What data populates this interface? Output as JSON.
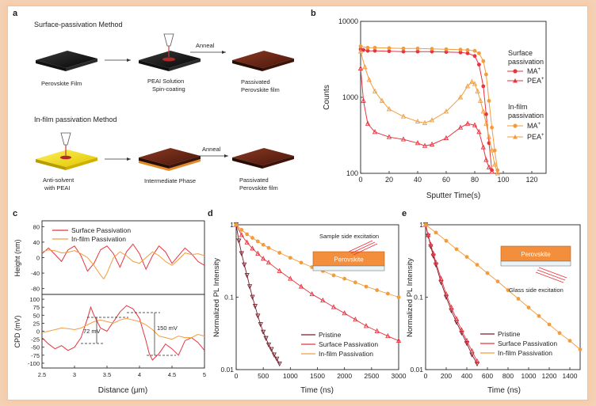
{
  "panels": {
    "a": {
      "letter": "a",
      "method1_title": "Surface-passivation Method",
      "method2_title": "In-film passivation Method",
      "anneal_label": "Anneal",
      "row1_labels": [
        "Perovskite Film",
        "PEAI Solution",
        "Spin-coating",
        "Passivated",
        "Perovskite film"
      ],
      "row2_labels": [
        "Anti-solvent",
        "with PEAI",
        "Intermediate Phase",
        "Passivated",
        "Perovskite film"
      ]
    },
    "b": {
      "letter": "b",
      "legend_group1": [
        "Surface",
        "passivation"
      ],
      "legend_group2": [
        "In-film",
        "passivation"
      ],
      "legend_ma": "MA",
      "legend_pea": "PEA",
      "legend_sup": "+"
    },
    "c": {
      "letter": "c",
      "legend1": "Surface Passivation",
      "legend2": "In-film Passivation",
      "ann_72": "72 mV",
      "ann_150": "150 mV"
    },
    "d": {
      "letter": "d",
      "inset_box": "Perovskite",
      "inset_label": "Sample side excitation"
    },
    "e": {
      "letter": "e",
      "inset_box": "Perovskite",
      "inset_label": "Glass side excitation"
    }
  },
  "colors": {
    "surface": "#e8343f",
    "infilm": "#f39c3c",
    "pristine": "#7a1f2b",
    "orange_box": "#f28e3c"
  },
  "chart_data": [
    {
      "panel": "b",
      "type": "line",
      "xlabel": "Sputter Time(s)",
      "ylabel": "Counts",
      "xlim": [
        0,
        130
      ],
      "ylim": [
        100,
        10000
      ],
      "yscale": "log",
      "xticks": [
        0,
        20,
        40,
        60,
        80,
        100,
        120
      ],
      "yticks": [
        100,
        1000,
        10000
      ],
      "series": [
        {
          "name": "Surface MA+",
          "color": "#e8343f",
          "marker": "circle",
          "x": [
            0,
            2,
            5,
            10,
            20,
            30,
            40,
            50,
            60,
            70,
            75,
            80,
            83,
            86,
            88,
            90,
            92
          ],
          "y": [
            4300,
            4200,
            4100,
            4100,
            4050,
            4000,
            4000,
            4000,
            3950,
            3900,
            3800,
            3500,
            2700,
            1400,
            600,
            250,
            110
          ]
        },
        {
          "name": "Surface PEA+",
          "color": "#e8343f",
          "marker": "triangle",
          "x": [
            0,
            2,
            5,
            10,
            20,
            30,
            40,
            45,
            50,
            60,
            70,
            75,
            80,
            83,
            86,
            88,
            90,
            92
          ],
          "y": [
            2400,
            900,
            450,
            350,
            300,
            280,
            250,
            230,
            240,
            290,
            400,
            450,
            430,
            350,
            220,
            150,
            120,
            105
          ]
        },
        {
          "name": "In-film MA+",
          "color": "#f39c3c",
          "marker": "circle",
          "x": [
            0,
            5,
            10,
            20,
            30,
            40,
            50,
            60,
            70,
            75,
            80,
            83,
            86,
            88,
            90,
            92,
            94,
            96
          ],
          "y": [
            4700,
            4500,
            4500,
            4450,
            4400,
            4400,
            4350,
            4300,
            4250,
            4200,
            4100,
            3800,
            3000,
            2000,
            900,
            400,
            200,
            110
          ]
        },
        {
          "name": "In-film PEA+",
          "color": "#f39c3c",
          "marker": "triangle",
          "x": [
            0,
            3,
            6,
            10,
            15,
            20,
            30,
            40,
            45,
            50,
            60,
            70,
            75,
            78,
            80,
            82,
            84,
            86,
            88,
            90,
            92,
            94,
            96
          ],
          "y": [
            4000,
            2500,
            1700,
            1200,
            900,
            700,
            560,
            480,
            460,
            500,
            650,
            1000,
            1400,
            1600,
            1500,
            1200,
            900,
            650,
            450,
            300,
            200,
            130,
            100
          ]
        }
      ]
    },
    {
      "panel": "c-top",
      "type": "line",
      "ylabel": "Height (nm)",
      "xlim": [
        2.5,
        5.0
      ],
      "ylim": [
        -95,
        95
      ],
      "yticks": [
        -80,
        -40,
        0,
        40,
        80
      ],
      "series": [
        {
          "name": "Surface Passivation",
          "color": "#e8343f",
          "x": [
            2.5,
            2.6,
            2.7,
            2.8,
            2.9,
            3.0,
            3.1,
            3.2,
            3.3,
            3.4,
            3.5,
            3.6,
            3.7,
            3.8,
            3.9,
            4.0,
            4.1,
            4.2,
            4.3,
            4.4,
            4.5,
            4.6,
            4.7,
            4.8,
            4.9,
            5.0
          ],
          "y": [
            10,
            25,
            8,
            -10,
            20,
            30,
            5,
            -35,
            -15,
            20,
            30,
            10,
            -25,
            15,
            35,
            10,
            -30,
            5,
            30,
            15,
            -15,
            5,
            25,
            10,
            -10,
            -20
          ]
        },
        {
          "name": "In-film Passivation",
          "color": "#f39c3c",
          "x": [
            2.5,
            2.6,
            2.7,
            2.8,
            2.9,
            3.0,
            3.1,
            3.2,
            3.3,
            3.4,
            3.45,
            3.5,
            3.6,
            3.7,
            3.8,
            3.9,
            4.0,
            4.1,
            4.2,
            4.3,
            4.4,
            4.5,
            4.6,
            4.7,
            4.8,
            4.9,
            5.0
          ],
          "y": [
            15,
            20,
            18,
            12,
            14,
            18,
            10,
            0,
            -20,
            -45,
            -55,
            -40,
            0,
            15,
            5,
            -10,
            -15,
            0,
            15,
            5,
            -10,
            -20,
            -5,
            12,
            8,
            10,
            5
          ]
        }
      ]
    },
    {
      "panel": "c-bottom",
      "type": "line",
      "xlabel": "Distance (μm)",
      "ylabel": "CPD (mV)",
      "xlim": [
        2.5,
        5.0
      ],
      "ylim": [
        -115,
        115
      ],
      "xticks": [
        2.5,
        3.0,
        3.5,
        4.0,
        4.5,
        5.0
      ],
      "yticks": [
        -100,
        -75,
        -50,
        -25,
        0,
        25,
        50,
        75,
        100
      ],
      "series": [
        {
          "name": "Surface Passivation",
          "color": "#e8343f",
          "x": [
            2.5,
            2.6,
            2.7,
            2.8,
            2.9,
            3.0,
            3.1,
            3.2,
            3.25,
            3.3,
            3.4,
            3.5,
            3.6,
            3.7,
            3.8,
            3.9,
            4.0,
            4.1,
            4.15,
            4.2,
            4.3,
            4.4,
            4.5,
            4.6,
            4.7,
            4.8,
            4.9,
            5.0
          ],
          "y": [
            -20,
            -40,
            -55,
            -45,
            -60,
            -50,
            -20,
            40,
            75,
            50,
            10,
            0,
            30,
            60,
            80,
            70,
            40,
            -30,
            -70,
            -90,
            -70,
            -40,
            -55,
            -75,
            -30,
            -20,
            -35,
            -60
          ]
        },
        {
          "name": "In-film Passivation",
          "color": "#f39c3c",
          "x": [
            2.5,
            2.6,
            2.7,
            2.8,
            2.9,
            3.0,
            3.1,
            3.2,
            3.3,
            3.4,
            3.5,
            3.6,
            3.7,
            3.8,
            3.9,
            4.0,
            4.1,
            4.2,
            4.3,
            4.4,
            4.5,
            4.6,
            4.7,
            4.8,
            4.9,
            5.0
          ],
          "y": [
            -5,
            0,
            5,
            10,
            8,
            5,
            10,
            20,
            30,
            35,
            30,
            25,
            35,
            40,
            35,
            30,
            20,
            5,
            -15,
            -20,
            -25,
            -15,
            -20,
            -20,
            -10,
            -15
          ]
        }
      ]
    },
    {
      "panel": "d",
      "type": "scatter",
      "xlabel": "Time (ns)",
      "ylabel": "Normalized PL Intensity",
      "xlim": [
        0,
        3000
      ],
      "ylim": [
        0.01,
        1
      ],
      "yscale": "log",
      "xticks": [
        0,
        500,
        1000,
        1500,
        2000,
        2500,
        3000
      ],
      "yticks": [
        0.01,
        0.1,
        1
      ],
      "series": [
        {
          "name": "Pristine",
          "color": "#7a1f2b",
          "marker": "triangle-down",
          "x": [
            0,
            50,
            100,
            150,
            200,
            250,
            300,
            350,
            400,
            450,
            500,
            550,
            600,
            650,
            700,
            750,
            800
          ],
          "y": [
            1,
            0.6,
            0.4,
            0.28,
            0.2,
            0.14,
            0.1,
            0.075,
            0.055,
            0.042,
            0.033,
            0.027,
            0.022,
            0.019,
            0.016,
            0.014,
            0.012
          ]
        },
        {
          "name": "Surface Passivation",
          "color": "#e8343f",
          "marker": "triangle",
          "x": [
            0,
            100,
            200,
            300,
            400,
            500,
            600,
            800,
            1000,
            1200,
            1400,
            1600,
            1800,
            2000,
            2200,
            2400,
            2600,
            2800,
            3000
          ],
          "y": [
            1,
            0.72,
            0.57,
            0.47,
            0.4,
            0.34,
            0.3,
            0.23,
            0.18,
            0.14,
            0.11,
            0.09,
            0.073,
            0.06,
            0.049,
            0.04,
            0.034,
            0.029,
            0.025
          ]
        },
        {
          "name": "In-film Passivation",
          "color": "#f39c3c",
          "marker": "circle",
          "x": [
            0,
            100,
            200,
            300,
            400,
            500,
            600,
            800,
            1000,
            1200,
            1400,
            1600,
            1800,
            2000,
            2200,
            2400,
            2600,
            2800,
            3000
          ],
          "y": [
            1,
            0.85,
            0.74,
            0.66,
            0.59,
            0.53,
            0.48,
            0.41,
            0.35,
            0.3,
            0.26,
            0.23,
            0.2,
            0.18,
            0.16,
            0.14,
            0.125,
            0.112,
            0.1
          ]
        }
      ]
    },
    {
      "panel": "e",
      "type": "scatter",
      "xlabel": "Time (ns)",
      "ylabel": "Normalized PL Intensity",
      "xlim": [
        0,
        1500
      ],
      "ylim": [
        0.01,
        1
      ],
      "yscale": "log",
      "xticks": [
        0,
        200,
        400,
        600,
        800,
        1000,
        1200,
        1400
      ],
      "yticks": [
        0.01,
        0.1,
        1
      ],
      "series": [
        {
          "name": "Pristine",
          "color": "#7a1f2b",
          "marker": "triangle-down",
          "x": [
            0,
            25,
            50,
            75,
            100,
            150,
            200,
            250,
            300,
            350,
            400,
            450,
            500
          ],
          "y": [
            1,
            0.7,
            0.5,
            0.37,
            0.28,
            0.16,
            0.1,
            0.065,
            0.045,
            0.032,
            0.023,
            0.016,
            0.012
          ]
        },
        {
          "name": "Surface Passivation",
          "color": "#e8343f",
          "marker": "triangle",
          "x": [
            0,
            25,
            50,
            75,
            100,
            150,
            200,
            250,
            300,
            350,
            400,
            450,
            500
          ],
          "y": [
            1,
            0.72,
            0.53,
            0.4,
            0.3,
            0.18,
            0.11,
            0.072,
            0.05,
            0.035,
            0.025,
            0.018,
            0.013
          ]
        },
        {
          "name": "In-film Passivation",
          "color": "#f39c3c",
          "marker": "circle",
          "x": [
            0,
            100,
            200,
            300,
            400,
            500,
            600,
            700,
            800,
            900,
            1000,
            1100,
            1200,
            1300,
            1400,
            1500
          ],
          "y": [
            1,
            0.78,
            0.6,
            0.46,
            0.36,
            0.28,
            0.215,
            0.165,
            0.125,
            0.095,
            0.072,
            0.055,
            0.042,
            0.032,
            0.025,
            0.019
          ]
        }
      ]
    }
  ]
}
